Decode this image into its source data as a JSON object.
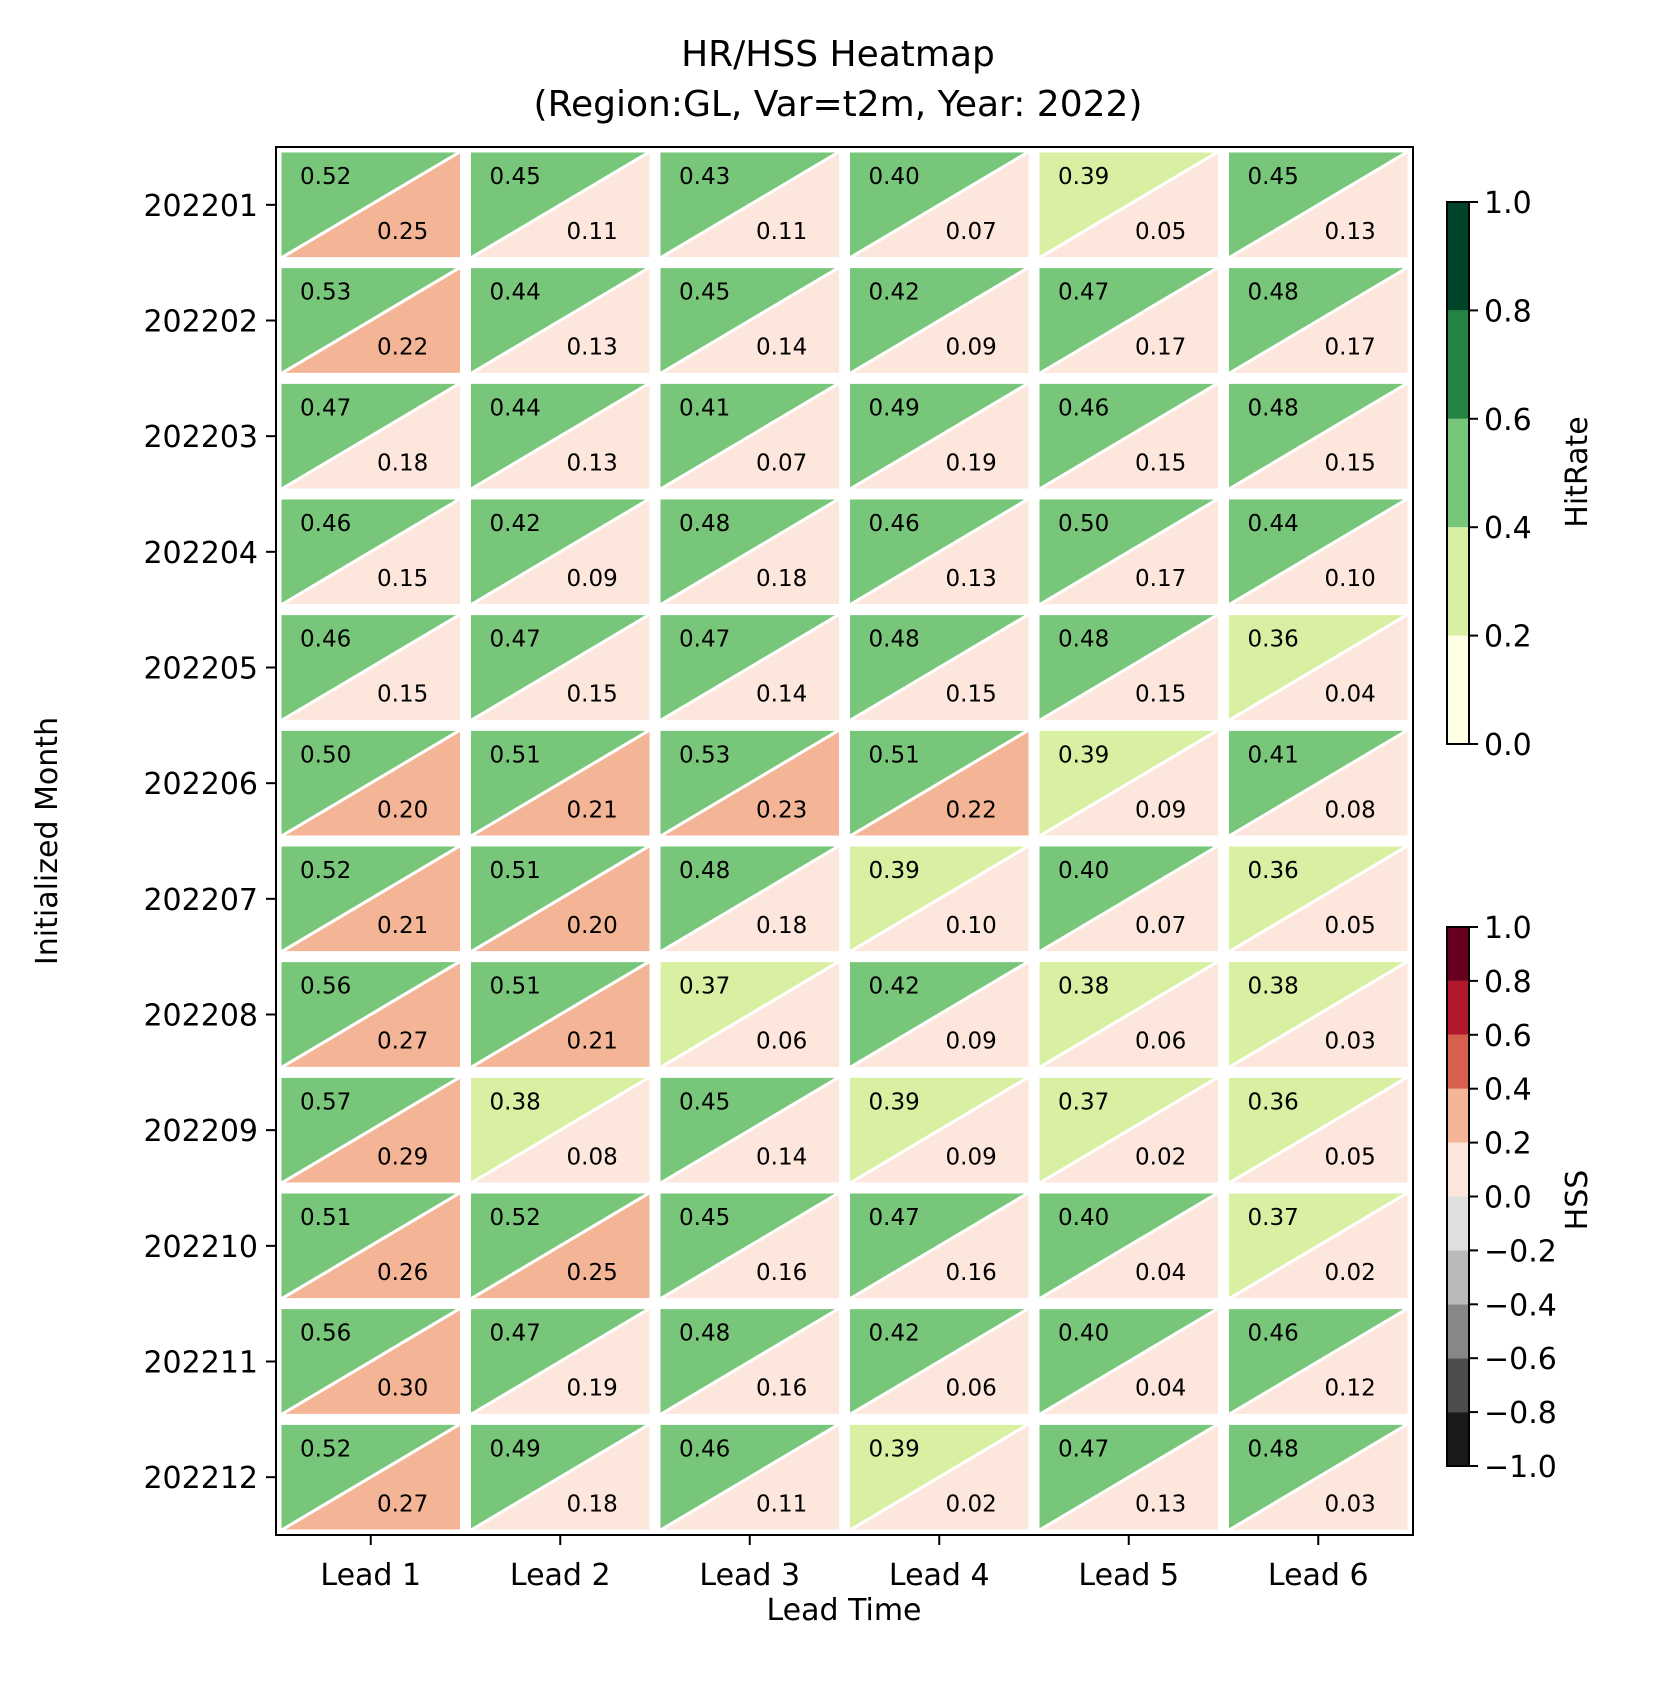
{
  "chart_data": {
    "type": "heatmap",
    "title_line1": "HR/HSS Heatmap",
    "title_line2": "(Region:GL, Var=t2m, Year: 2022)",
    "xlabel": "Lead Time",
    "ylabel": "Initialized Month",
    "columns": [
      "Lead 1",
      "Lead 2",
      "Lead 3",
      "Lead 4",
      "Lead 5",
      "Lead 6"
    ],
    "rows": [
      "202201",
      "202202",
      "202203",
      "202204",
      "202205",
      "202206",
      "202207",
      "202208",
      "202209",
      "202210",
      "202211",
      "202212"
    ],
    "hitrate": [
      [
        0.52,
        0.45,
        0.43,
        0.4,
        0.39,
        0.45
      ],
      [
        0.53,
        0.44,
        0.45,
        0.42,
        0.47,
        0.48
      ],
      [
        0.47,
        0.44,
        0.41,
        0.49,
        0.46,
        0.48
      ],
      [
        0.46,
        0.42,
        0.48,
        0.46,
        0.5,
        0.44
      ],
      [
        0.46,
        0.47,
        0.47,
        0.48,
        0.48,
        0.36
      ],
      [
        0.5,
        0.51,
        0.53,
        0.51,
        0.39,
        0.41
      ],
      [
        0.52,
        0.51,
        0.48,
        0.39,
        0.4,
        0.36
      ],
      [
        0.56,
        0.51,
        0.37,
        0.42,
        0.38,
        0.38
      ],
      [
        0.57,
        0.38,
        0.45,
        0.39,
        0.37,
        0.36
      ],
      [
        0.51,
        0.52,
        0.45,
        0.47,
        0.4,
        0.37
      ],
      [
        0.56,
        0.47,
        0.48,
        0.42,
        0.4,
        0.46
      ],
      [
        0.52,
        0.49,
        0.46,
        0.39,
        0.47,
        0.48
      ]
    ],
    "hss": [
      [
        0.25,
        0.11,
        0.11,
        0.07,
        0.05,
        0.13
      ],
      [
        0.22,
        0.13,
        0.14,
        0.09,
        0.17,
        0.17
      ],
      [
        0.18,
        0.13,
        0.07,
        0.19,
        0.15,
        0.15
      ],
      [
        0.15,
        0.09,
        0.18,
        0.13,
        0.17,
        0.1
      ],
      [
        0.15,
        0.15,
        0.14,
        0.15,
        0.15,
        0.04
      ],
      [
        0.2,
        0.21,
        0.23,
        0.22,
        0.09,
        0.08
      ],
      [
        0.21,
        0.2,
        0.18,
        0.1,
        0.07,
        0.05
      ],
      [
        0.27,
        0.21,
        0.06,
        0.09,
        0.06,
        0.03
      ],
      [
        0.29,
        0.08,
        0.14,
        0.09,
        0.02,
        0.05
      ],
      [
        0.26,
        0.25,
        0.16,
        0.16,
        0.04,
        0.02
      ],
      [
        0.3,
        0.19,
        0.16,
        0.06,
        0.04,
        0.12
      ],
      [
        0.27,
        0.18,
        0.11,
        0.02,
        0.13,
        0.03
      ]
    ],
    "hitrate_colorbar": {
      "label": "HitRate",
      "bounds": [
        0.0,
        0.2,
        0.4,
        0.6,
        0.8,
        1.0
      ],
      "tick_labels": [
        "0.0",
        "0.2",
        "0.4",
        "0.6",
        "0.8",
        "1.0"
      ],
      "colors": [
        "#ffffe5",
        "#d9f0a3",
        "#78c679",
        "#238443",
        "#004529"
      ]
    },
    "hss_colorbar": {
      "label": "HSS",
      "bounds": [
        -1.0,
        -0.8,
        -0.6,
        -0.4,
        -0.2,
        0.0,
        0.2,
        0.4,
        0.6,
        0.8,
        1.0
      ],
      "tick_labels": [
        "−1.0",
        "−0.8",
        "−0.6",
        "−0.4",
        "−0.2",
        "0.0",
        "0.2",
        "0.4",
        "0.6",
        "0.8",
        "1.0"
      ],
      "colors": [
        "#1a1a1a",
        "#4d4d4d",
        "#878787",
        "#bababa",
        "#e0e0e0",
        "#fde6dc",
        "#f4b596",
        "#d6604d",
        "#b2182b",
        "#67001f"
      ]
    },
    "grid": false,
    "colorbar_placement": "right"
  }
}
